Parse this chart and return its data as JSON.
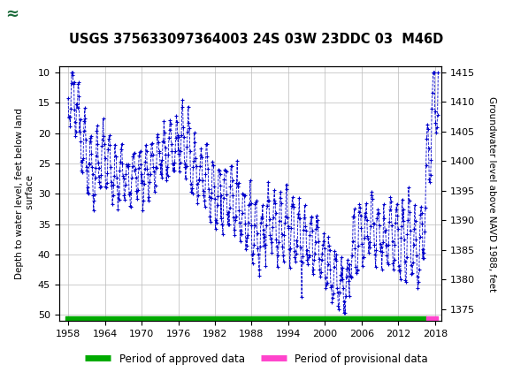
{
  "title": "USGS 375633097364003 24S 03W 23DDC 03  M46D",
  "ylabel_left": "Depth to water level, feet below land\n surface",
  "ylabel_right": "Groundwater level above NAVD 1988, feet",
  "ylim_left": [
    51,
    9
  ],
  "ylim_right": [
    1373,
    1416
  ],
  "xlim": [
    1956.5,
    2019
  ],
  "xticks": [
    1958,
    1964,
    1970,
    1976,
    1982,
    1988,
    1994,
    2000,
    2006,
    2012,
    2018
  ],
  "yticks_left": [
    10,
    15,
    20,
    25,
    30,
    35,
    40,
    45,
    50
  ],
  "yticks_right": [
    1375,
    1380,
    1385,
    1390,
    1395,
    1400,
    1405,
    1410,
    1415
  ],
  "header_color": "#1b6b3a",
  "plot_bg": "#ffffff",
  "grid_color": "#bbbbbb",
  "data_color": "#0000cc",
  "marker": "+",
  "markersize": 3.5,
  "linestyle": "--",
  "linewidth": 0.6,
  "legend_approved_color": "#00aa00",
  "legend_provisional_color": "#ff44cc",
  "legend_approved_label": "Period of approved data",
  "legend_provisional_label": "Period of provisional data",
  "approved_bar_start": 1957.5,
  "approved_bar_end": 2016.5,
  "provisional_bar_start": 2016.5,
  "provisional_bar_end": 2018.5
}
